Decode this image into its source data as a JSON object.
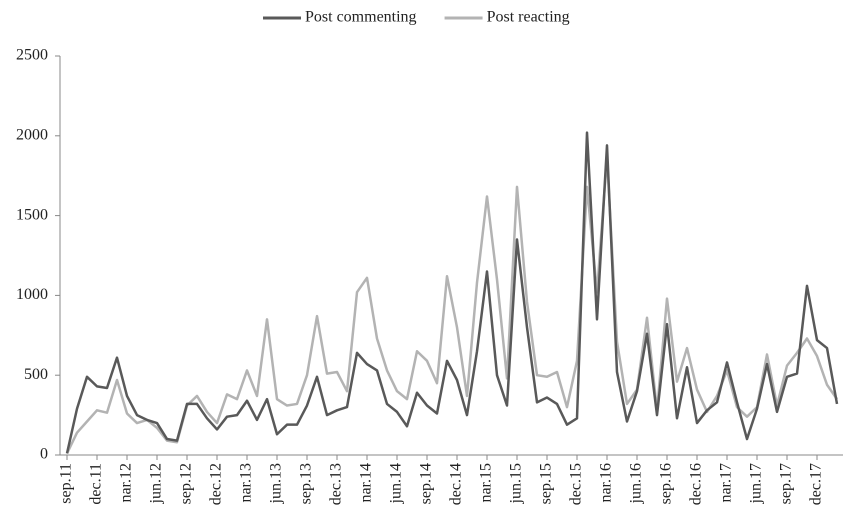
{
  "chart_data": {
    "type": "line",
    "categories": [
      "sep.11",
      null,
      null,
      "dec.11",
      null,
      null,
      "nar.12",
      null,
      null,
      "jun.12",
      null,
      null,
      "sep.12",
      null,
      null,
      "dec.12",
      null,
      null,
      "nar.13",
      null,
      null,
      "jun.13",
      null,
      null,
      "sep.13",
      null,
      null,
      "dec.13",
      null,
      null,
      "nar.14",
      null,
      null,
      "jun.14",
      null,
      null,
      "sep.14",
      null,
      null,
      "dec.14",
      null,
      null,
      "nar.15",
      null,
      null,
      "jun.15",
      null,
      null,
      "sep.15",
      null,
      null,
      "dec.15",
      null,
      null,
      "nar.16",
      null,
      null,
      "jun.16",
      null,
      null,
      "sep.16",
      null,
      null,
      "dec.16",
      null,
      null,
      "nar.17",
      null,
      null,
      "jun.17",
      null,
      null,
      "sep.17",
      null,
      null,
      "dec.17",
      null,
      null
    ],
    "series": [
      {
        "name": "Post commenting",
        "color": "#595959",
        "values": [
          10,
          290,
          490,
          430,
          420,
          610,
          370,
          250,
          220,
          200,
          100,
          90,
          320,
          320,
          230,
          160,
          240,
          250,
          340,
          220,
          350,
          130,
          190,
          190,
          310,
          490,
          250,
          280,
          300,
          640,
          570,
          530,
          320,
          270,
          180,
          390,
          310,
          260,
          590,
          470,
          250,
          650,
          1150,
          500,
          310,
          1350,
          800,
          330,
          360,
          320,
          190,
          230,
          2020,
          850,
          1940,
          520,
          210,
          400,
          760,
          250,
          820,
          230,
          550,
          200,
          280,
          330,
          580,
          330,
          100,
          290,
          570,
          270,
          490,
          510,
          1060,
          720,
          670,
          320
        ]
      },
      {
        "name": "Post reacting",
        "color": "#b3b3b3",
        "values": [
          10,
          140,
          210,
          280,
          265,
          470,
          260,
          200,
          220,
          170,
          90,
          80,
          310,
          370,
          270,
          200,
          380,
          350,
          530,
          370,
          850,
          350,
          310,
          320,
          500,
          870,
          510,
          520,
          400,
          1020,
          1110,
          730,
          530,
          400,
          350,
          650,
          590,
          450,
          1120,
          800,
          370,
          1080,
          1620,
          1100,
          480,
          1680,
          960,
          500,
          490,
          520,
          300,
          590,
          1680,
          1020,
          1870,
          710,
          320,
          410,
          860,
          280,
          980,
          460,
          670,
          410,
          270,
          370,
          530,
          300,
          240,
          300,
          630,
          310,
          560,
          640,
          730,
          620,
          440,
          350
        ]
      }
    ],
    "ylim": [
      0,
      2500
    ],
    "yticks": [
      0,
      500,
      1000,
      1500,
      2000,
      2500
    ],
    "legend": "top"
  }
}
